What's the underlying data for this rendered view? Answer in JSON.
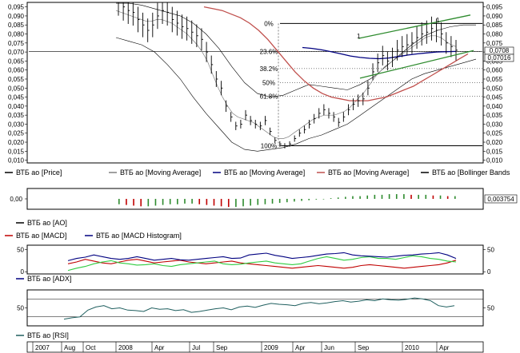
{
  "colors": {
    "price": "#000000",
    "ma_short": "#808080",
    "ma_medium": "#000080",
    "ma_long": "#c0504d",
    "bollinger": "#000000",
    "trend_lines": "#2e8b2e",
    "fib_lines": "#000000",
    "ao_up": "#2e8b2e",
    "ao_down": "#c00000",
    "macd_line": "#c00000",
    "macd_signal": "#000080",
    "adx": "#000080",
    "adx_di_plus": "#2ecc40",
    "adx_di_minus": "#c00000",
    "rsi": "#1f5f5f",
    "value_box": "#000000"
  },
  "legends": {
    "main": [
      {
        "label": "ВТБ ао [Price]",
        "color": "#000000"
      },
      {
        "label": "ВТБ ао [Moving Average]",
        "color": "#808080"
      },
      {
        "label": "ВТБ ао [Moving Average]",
        "color": "#000080"
      },
      {
        "label": "ВТБ ао [Moving Average]",
        "color": "#c0504d"
      },
      {
        "label": "ВТБ ао [Bollinger Bands",
        "color": "#000000"
      }
    ],
    "ao": [
      {
        "label": "ВТБ ао [AO]",
        "color": "#000000"
      }
    ],
    "macd": [
      {
        "label": "ВТБ ао [MACD]",
        "color": "#c00000"
      },
      {
        "label": "ВТБ ао [MACD Histogram]",
        "color": "#000080"
      }
    ],
    "adx": [
      {
        "label": "ВТБ ао [ADX]",
        "color": "#000080"
      }
    ],
    "rsi": [
      {
        "label": "ВТБ ао [RSI]",
        "color": "#1f5f5f"
      }
    ]
  },
  "price_value_boxes": {
    "upper": "0,0708",
    "lower": "0,07016"
  },
  "ao_value_box": "0,003754",
  "ao_zero_label": "0,00",
  "x_axis": {
    "labels": [
      "2007",
      "Aug",
      "Oct",
      "2008",
      "Apr",
      "Jul",
      "Sep",
      "2009",
      "Apr",
      "Jun",
      "Sep",
      "2010",
      "Apr"
    ]
  },
  "chart_data": {
    "type": "line",
    "price_panel": {
      "y_ticks_left": [
        "0,095",
        "0,090",
        "0,085",
        "0,080",
        "0,075",
        "0,070",
        "0,065",
        "0,060",
        "0,055",
        "0,050",
        "0,045",
        "0,040",
        "0,035",
        "0,030",
        "0,025",
        "0,020",
        "0,015",
        "0,010"
      ],
      "y_ticks_right": [
        "0,095",
        "0,090",
        "0,085",
        "0,080",
        "0,075",
        "0,070",
        "0,065",
        "0,060",
        "0,055",
        "0,050",
        "0,045",
        "0,040",
        "0,035",
        "0,030",
        "0,025",
        "0,020",
        "0,015",
        "0,010"
      ],
      "ylim": [
        0.0085,
        0.0975
      ],
      "fib_labels": [
        "0%",
        "23.6%",
        "38.2%",
        "50%",
        "61.8%",
        "100%"
      ],
      "fib_levels": [
        0.0858,
        0.0703,
        0.0608,
        0.0531,
        0.0455,
        0.018
      ],
      "trend_markers": [
        "1",
        "1"
      ],
      "price": [
        0.098,
        0.095,
        0.093,
        0.092,
        0.088,
        0.085,
        0.082,
        0.085,
        0.09,
        0.093,
        0.092,
        0.088,
        0.086,
        0.084,
        0.083,
        0.081,
        0.079,
        0.077,
        0.07,
        0.063,
        0.055,
        0.05,
        0.04,
        0.034,
        0.029,
        0.03,
        0.035,
        0.032,
        0.03,
        0.029,
        0.032,
        0.026,
        0.021,
        0.019,
        0.018,
        0.019,
        0.022,
        0.025,
        0.027,
        0.03,
        0.033,
        0.036,
        0.038,
        0.036,
        0.034,
        0.031,
        0.034,
        0.038,
        0.041,
        0.043,
        0.044,
        0.05,
        0.059,
        0.064,
        0.068,
        0.065,
        0.067,
        0.071,
        0.073,
        0.074,
        0.075,
        0.078,
        0.08,
        0.081,
        0.083,
        0.082,
        0.08,
        0.075,
        0.073,
        0.071
      ],
      "ma_short": [
        0.093,
        0.092,
        0.091,
        0.09,
        0.089,
        0.088,
        0.087,
        0.087,
        0.088,
        0.088,
        0.087,
        0.086,
        0.084,
        0.082,
        0.08,
        0.077,
        0.074,
        0.07,
        0.065,
        0.058,
        0.051,
        0.045,
        0.04,
        0.036,
        0.034,
        0.033,
        0.032,
        0.031,
        0.029,
        0.027,
        0.025,
        0.023,
        0.022,
        0.022,
        0.023,
        0.025,
        0.027,
        0.029,
        0.031,
        0.033,
        0.034,
        0.035,
        0.035,
        0.035,
        0.036,
        0.037,
        0.039,
        0.042,
        0.045,
        0.048,
        0.052,
        0.056,
        0.059,
        0.062,
        0.064,
        0.066,
        0.068,
        0.07,
        0.072,
        0.074,
        0.076,
        0.078,
        0.079,
        0.079,
        0.078,
        0.076,
        0.074,
        0.073
      ],
      "ma_medium": [
        0.0725,
        0.072,
        0.0712,
        0.0702,
        0.069,
        0.0678,
        0.067,
        0.0665,
        0.0663,
        0.0667,
        0.0675,
        0.0683,
        0.069,
        0.0695,
        0.07,
        0.0702,
        0.0703
      ],
      "ma_long": [
        0.095,
        0.094,
        0.093,
        0.091,
        0.089,
        0.086,
        0.082,
        0.077,
        0.071,
        0.065,
        0.059,
        0.054,
        0.05,
        0.047,
        0.045,
        0.044,
        0.043,
        0.043,
        0.043,
        0.044,
        0.045,
        0.047,
        0.049,
        0.051,
        0.054,
        0.057,
        0.06,
        0.063,
        0.066,
        0.069
      ],
      "bollinger_upper": [
        0.097,
        0.097,
        0.096,
        0.094,
        0.092,
        0.09,
        0.086,
        0.08,
        0.072,
        0.062,
        0.053,
        0.047,
        0.045,
        0.046,
        0.049,
        0.052,
        0.051,
        0.05,
        0.049,
        0.052,
        0.056,
        0.062,
        0.068,
        0.074,
        0.079,
        0.082,
        0.084,
        0.085,
        0.085
      ],
      "bollinger_lower": [
        0.078,
        0.076,
        0.074,
        0.07,
        0.063,
        0.055,
        0.045,
        0.036,
        0.028,
        0.02,
        0.016,
        0.015,
        0.016,
        0.017,
        0.019,
        0.022,
        0.024,
        0.027,
        0.03,
        0.035,
        0.04,
        0.045,
        0.05,
        0.055,
        0.058,
        0.06,
        0.062,
        0.064,
        0.066
      ]
    },
    "ao_panel": {
      "values": [
        -0.008,
        -0.009,
        -0.01,
        -0.011,
        -0.011,
        -0.01,
        -0.009,
        -0.008,
        -0.008,
        -0.007,
        -0.007,
        -0.008,
        -0.009,
        -0.01,
        -0.011,
        -0.012,
        -0.012,
        -0.011,
        -0.01,
        -0.009,
        -0.008,
        -0.007,
        -0.006,
        -0.005,
        -0.004,
        -0.003,
        -0.002,
        -0.001,
        0.0,
        0.001,
        0.002,
        0.003,
        0.004,
        0.004,
        0.005,
        0.006,
        0.006,
        0.007,
        0.007,
        0.007,
        0.006,
        0.006,
        0.006,
        0.005,
        0.005,
        0.004,
        0.004
      ]
    },
    "macd_panel": {
      "y_ticks_left": [
        "50",
        "0"
      ],
      "y_ticks_right": [
        "50",
        "0"
      ],
      "ylim": [
        -5,
        60
      ],
      "adx": [
        25,
        30,
        33,
        38,
        34,
        30,
        28,
        30,
        34,
        30,
        26,
        28,
        30,
        27,
        26,
        28,
        30,
        32,
        34,
        30,
        31,
        38,
        40,
        42,
        37,
        34,
        30,
        32,
        34,
        37,
        40,
        41,
        43,
        38,
        36,
        35,
        34,
        33,
        35,
        37,
        38,
        40,
        41,
        43,
        38,
        30
      ],
      "di_plus": [
        3,
        8,
        12,
        18,
        22,
        25,
        20,
        18,
        15,
        16,
        18,
        14,
        12,
        16,
        18,
        20,
        22,
        24,
        18,
        16,
        17,
        20,
        22,
        24,
        20,
        18,
        16,
        18,
        24,
        30,
        34,
        30,
        26,
        28,
        32,
        34,
        30,
        30,
        28,
        32,
        36,
        34,
        30,
        28,
        24,
        22
      ],
      "di_minus": [
        18,
        22,
        28,
        24,
        20,
        18,
        22,
        26,
        28,
        24,
        20,
        22,
        24,
        26,
        22,
        20,
        18,
        20,
        22,
        24,
        20,
        18,
        16,
        14,
        12,
        10,
        8,
        10,
        12,
        14,
        12,
        10,
        8,
        10,
        14,
        16,
        14,
        12,
        10,
        8,
        10,
        12,
        14,
        16,
        20,
        26
      ]
    },
    "rsi_panel": {
      "y_ticks_left": [
        "50"
      ],
      "y_ticks_right": [
        "50"
      ],
      "ylim": [
        10,
        90
      ],
      "values": [
        25,
        28,
        30,
        45,
        52,
        55,
        48,
        50,
        45,
        44,
        42,
        50,
        47,
        48,
        44,
        46,
        40,
        42,
        45,
        48,
        50,
        46,
        52,
        54,
        51,
        56,
        60,
        58,
        57,
        55,
        60,
        62,
        59,
        61,
        64,
        66,
        63,
        65,
        68,
        66,
        70,
        68,
        67,
        69,
        72,
        70,
        66,
        55,
        52,
        55
      ]
    }
  }
}
